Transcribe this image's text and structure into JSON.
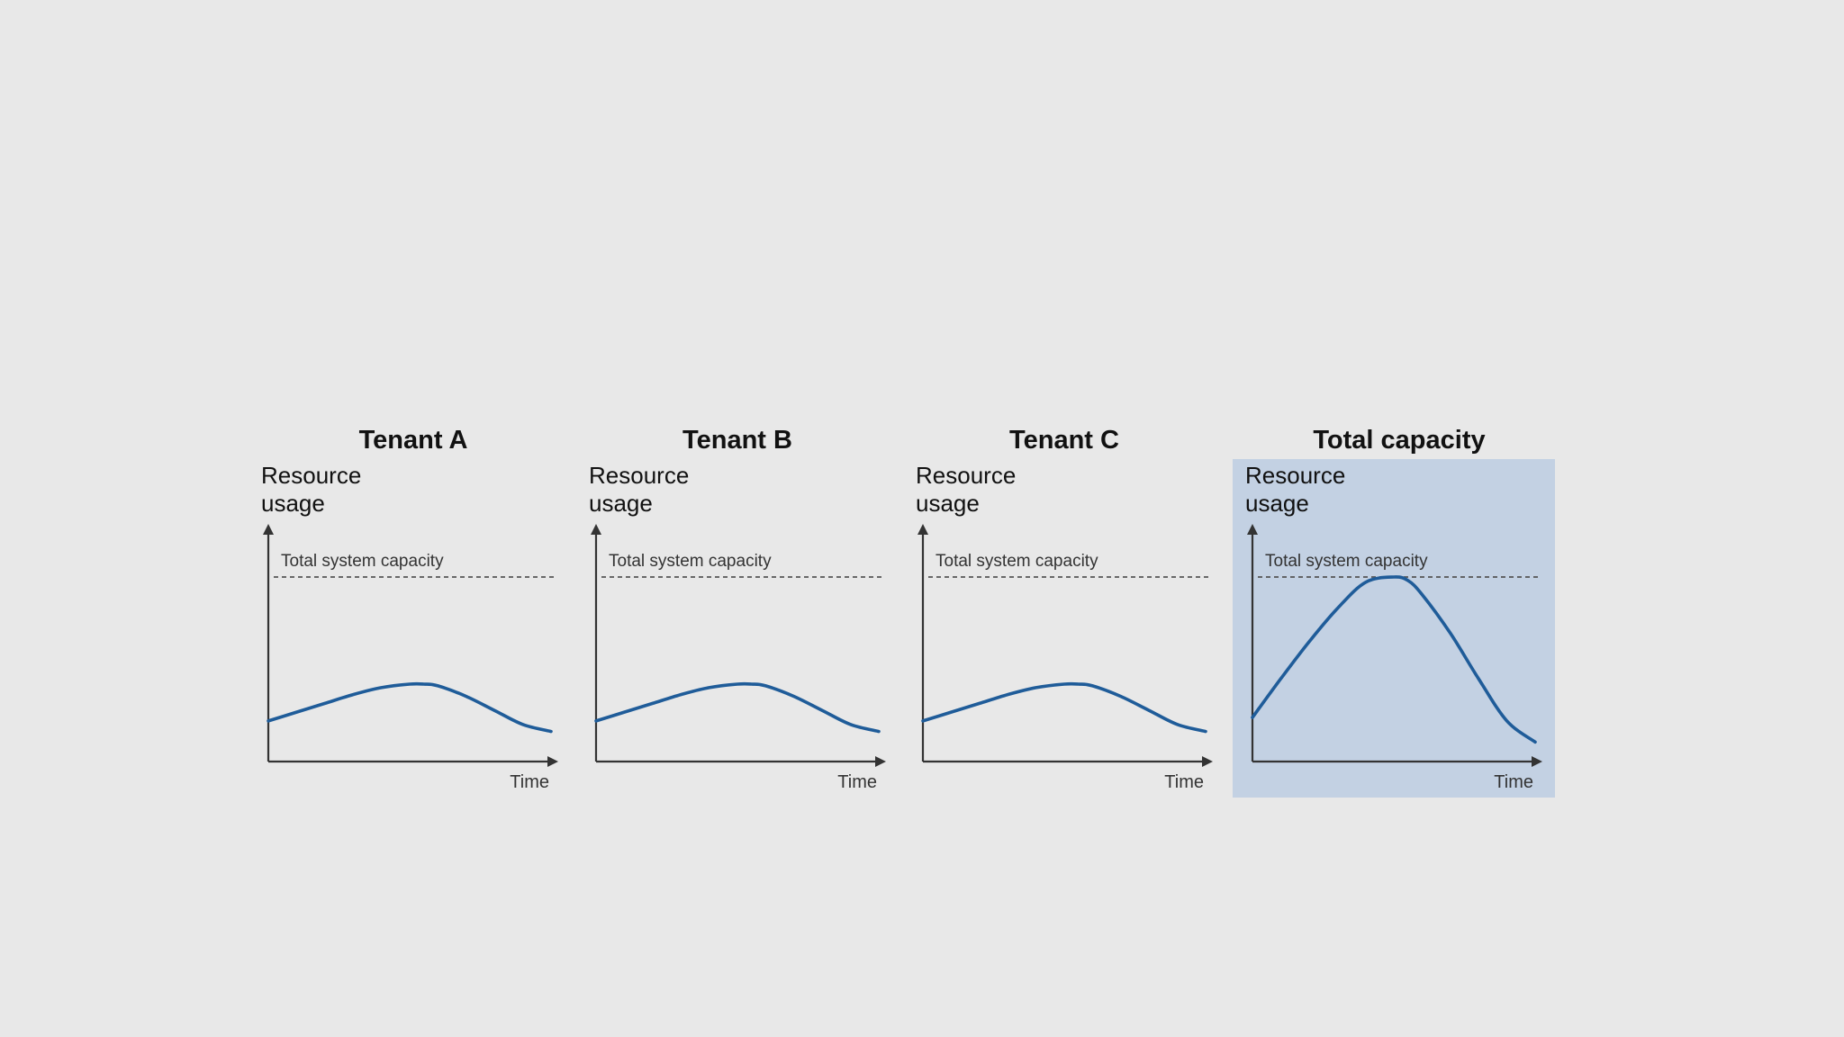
{
  "chart_data": [
    {
      "type": "line",
      "title": "Tenant A",
      "ylabel": "Resource usage",
      "ylabel_lines": [
        "Resource",
        "usage"
      ],
      "xlabel": "Time",
      "reference_line": {
        "label": "Total system capacity",
        "value": 100
      },
      "ylim": [
        0,
        110
      ],
      "x": [
        0,
        10,
        20,
        30,
        40,
        50,
        55,
        60,
        70,
        80,
        90,
        100
      ],
      "series": [
        {
          "values": [
            18,
            23,
            28,
            33,
            37,
            39,
            39,
            38,
            32,
            24,
            16,
            12
          ]
        }
      ],
      "highlighted": false
    },
    {
      "type": "line",
      "title": "Tenant B",
      "ylabel": "Resource usage",
      "ylabel_lines": [
        "Resource",
        "usage"
      ],
      "xlabel": "Time",
      "reference_line": {
        "label": "Total system capacity",
        "value": 100
      },
      "ylim": [
        0,
        110
      ],
      "x": [
        0,
        10,
        20,
        30,
        40,
        50,
        55,
        60,
        70,
        80,
        90,
        100
      ],
      "series": [
        {
          "values": [
            18,
            23,
            28,
            33,
            37,
            39,
            39,
            38,
            32,
            24,
            16,
            12
          ]
        }
      ],
      "highlighted": false
    },
    {
      "type": "line",
      "title": "Tenant C",
      "ylabel": "Resource usage",
      "ylabel_lines": [
        "Resource",
        "usage"
      ],
      "xlabel": "Time",
      "reference_line": {
        "label": "Total system capacity",
        "value": 100
      },
      "ylim": [
        0,
        110
      ],
      "x": [
        0,
        10,
        20,
        30,
        40,
        50,
        55,
        60,
        70,
        80,
        90,
        100
      ],
      "series": [
        {
          "values": [
            18,
            23,
            28,
            33,
            37,
            39,
            39,
            38,
            32,
            24,
            16,
            12
          ]
        }
      ],
      "highlighted": false
    },
    {
      "type": "line",
      "title": "Total capacity",
      "ylabel": "Resource usage",
      "ylabel_lines": [
        "Resource",
        "usage"
      ],
      "xlabel": "Time",
      "reference_line": {
        "label": "Total system capacity",
        "value": 100
      },
      "ylim": [
        0,
        110
      ],
      "x": [
        0,
        10,
        20,
        30,
        40,
        50,
        55,
        60,
        70,
        80,
        90,
        100
      ],
      "series": [
        {
          "values": [
            20,
            42,
            63,
            82,
            97,
            100,
            98,
            90,
            68,
            42,
            18,
            6
          ]
        }
      ],
      "highlighted": true
    }
  ],
  "colors": {
    "background": "#e8e8e8",
    "line": "#1f5c99",
    "highlight_panel": "#c3d1e3",
    "axis": "#333333",
    "text": "#111111"
  }
}
